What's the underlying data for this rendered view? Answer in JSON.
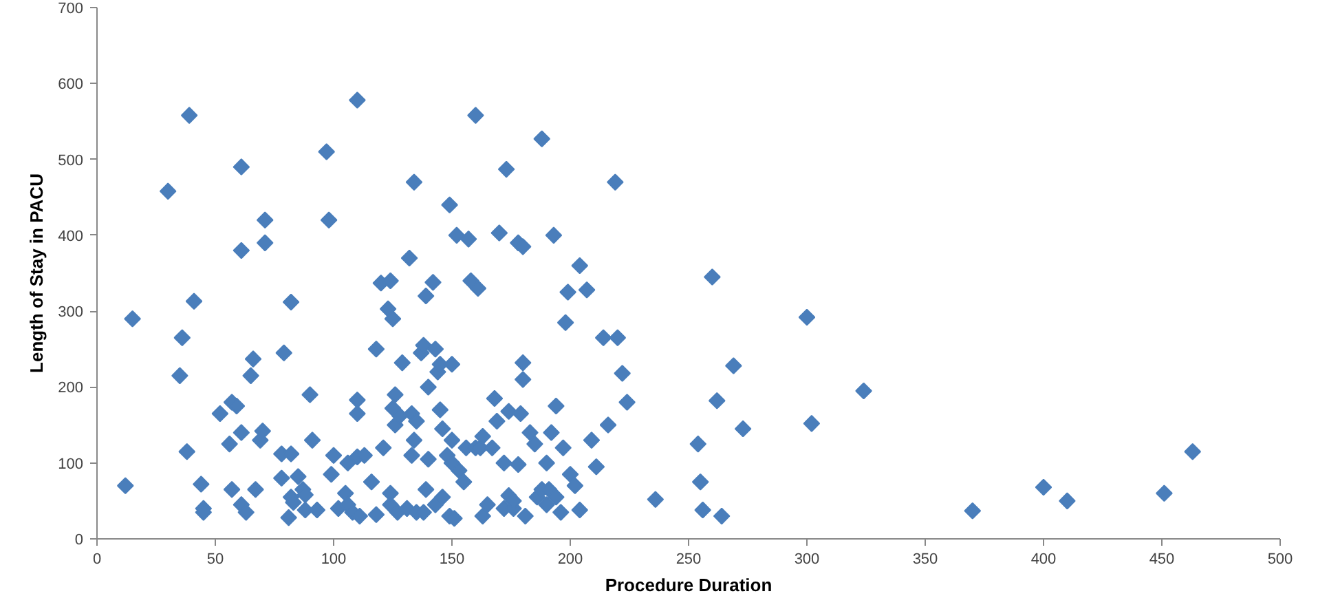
{
  "chart_data": {
    "type": "scatter",
    "xlabel": "Procedure Duration",
    "ylabel": "Length of Stay in PACU",
    "xlim": [
      0,
      500
    ],
    "ylim": [
      0,
      700
    ],
    "xticks": [
      0,
      50,
      100,
      150,
      200,
      250,
      300,
      350,
      400,
      450,
      500
    ],
    "yticks": [
      0,
      100,
      200,
      300,
      400,
      500,
      600,
      700
    ],
    "grid": false,
    "marker": "diamond",
    "series": [
      {
        "color": "#4a7ebb",
        "x": [
          12,
          15,
          30,
          35,
          36,
          38,
          39,
          41,
          44,
          45,
          45,
          52,
          56,
          57,
          57,
          59,
          61,
          61,
          61,
          61,
          63,
          65,
          66,
          67,
          69,
          70,
          71,
          71,
          78,
          78,
          79,
          81,
          82,
          82,
          82,
          83,
          85,
          87,
          88,
          88,
          90,
          91,
          93,
          97,
          98,
          99,
          100,
          102,
          105,
          106,
          106,
          108,
          110,
          110,
          110,
          110,
          111,
          113,
          116,
          118,
          118,
          120,
          121,
          123,
          124,
          124,
          124,
          125,
          125,
          126,
          126,
          127,
          128,
          129,
          131,
          132,
          133,
          133,
          134,
          134,
          135,
          135,
          137,
          138,
          138,
          139,
          139,
          140,
          140,
          142,
          143,
          143,
          144,
          145,
          145,
          146,
          146,
          148,
          149,
          149,
          150,
          150,
          150,
          151,
          152,
          153,
          155,
          156,
          157,
          158,
          160,
          160,
          161,
          162,
          163,
          163,
          165,
          167,
          168,
          169,
          170,
          172,
          172,
          173,
          174,
          174,
          176,
          176,
          178,
          178,
          179,
          180,
          180,
          180,
          181,
          183,
          185,
          186,
          188,
          188,
          190,
          190,
          191,
          192,
          193,
          194,
          194,
          196,
          197,
          198,
          199,
          200,
          202,
          204,
          204,
          207,
          209,
          211,
          214,
          216,
          219,
          220,
          222,
          224,
          236,
          254,
          255,
          256,
          260,
          262,
          264,
          269,
          273,
          300,
          302,
          324,
          370,
          400,
          410,
          451,
          463
        ],
        "values": [
          70,
          290,
          458,
          215,
          265,
          115,
          558,
          313,
          72,
          40,
          35,
          165,
          125,
          180,
          65,
          175,
          490,
          380,
          140,
          45,
          35,
          215,
          237,
          65,
          130,
          142,
          420,
          390,
          80,
          112,
          245,
          28,
          312,
          112,
          55,
          48,
          82,
          65,
          38,
          58,
          190,
          130,
          38,
          510,
          420,
          85,
          110,
          40,
          60,
          45,
          100,
          35,
          578,
          183,
          165,
          108,
          30,
          110,
          75,
          32,
          250,
          337,
          120,
          303,
          340,
          45,
          60,
          290,
          172,
          190,
          150,
          35,
          162,
          232,
          40,
          370,
          165,
          110,
          470,
          130,
          35,
          155,
          245,
          255,
          35,
          320,
          65,
          200,
          105,
          338,
          250,
          45,
          220,
          230,
          170,
          145,
          55,
          110,
          440,
          30,
          230,
          100,
          130,
          27,
          400,
          90,
          75,
          120,
          395,
          340,
          120,
          558,
          330,
          120,
          135,
          30,
          45,
          120,
          185,
          155,
          403,
          100,
          40,
          487,
          57,
          168,
          40,
          50,
          98,
          390,
          165,
          385,
          232,
          210,
          30,
          140,
          125,
          55,
          65,
          527,
          100,
          45,
          65,
          140,
          400,
          175,
          55,
          35,
          120,
          285,
          325,
          85,
          70,
          360,
          38,
          328,
          130,
          95,
          265,
          150,
          470,
          265,
          218,
          180,
          52,
          125,
          75,
          38,
          345,
          182,
          30,
          228,
          145,
          292,
          152,
          195,
          37,
          68,
          50,
          60,
          115
        ]
      }
    ]
  }
}
